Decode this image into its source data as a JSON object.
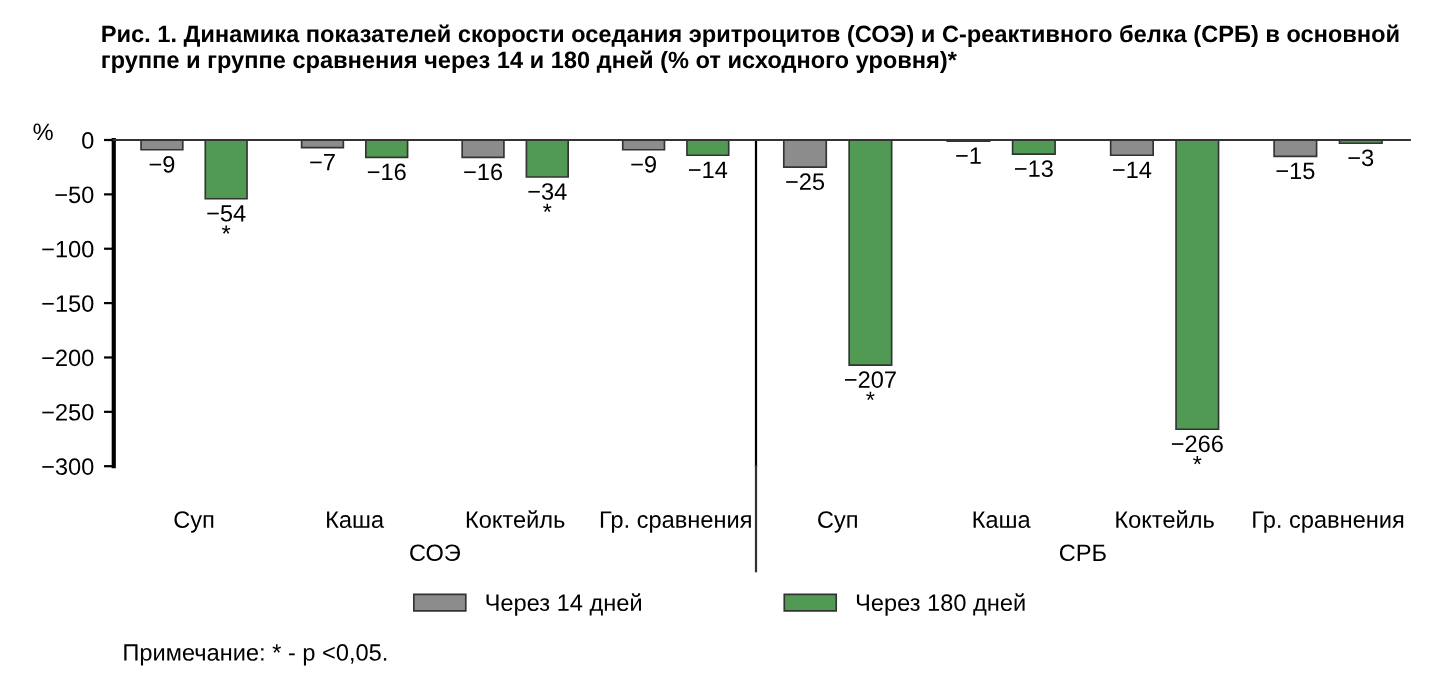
{
  "chart_data": [
    {
      "type": "bar",
      "title": "Рис. 1. Динамика показателей скорости оседания эритроцитов (СОЭ) и С-реактивного белка (СРБ) в основной группе и группе сравнения через 14 и 180 дней (% от исходного уровня)*",
      "xlabel": "СОЭ",
      "ylabel": "%",
      "categories": [
        "Суп",
        "Каша",
        "Коктейль",
        "Гр. сравнения"
      ],
      "series": [
        {
          "name": "Через 14 дней",
          "color": "#8c8c8c",
          "values": [
            -9,
            -7,
            -16,
            -9
          ],
          "value_labels": [
            "−9",
            "−7",
            "−16",
            "−9"
          ]
        },
        {
          "name": "Через 180 дней",
          "color": "#519a53",
          "values": [
            -54,
            -16,
            -34,
            -14
          ],
          "value_labels": [
            "−54\n*",
            "−16",
            "−34\n*",
            "−14"
          ]
        }
      ],
      "ylim": [
        -300,
        0
      ],
      "yticks": [
        {
          "value": 0,
          "label": "0"
        },
        {
          "value": -50,
          "label": "−50"
        },
        {
          "value": -100,
          "label": "−100"
        },
        {
          "value": -150,
          "label": "−150"
        },
        {
          "value": -200,
          "label": "−200"
        },
        {
          "value": -250,
          "label": "−250"
        },
        {
          "value": -300,
          "label": "−300"
        }
      ],
      "legend": "bottom",
      "grid": false,
      "annotations": [
        "Примечание: * - p <0,05."
      ]
    },
    {
      "type": "bar",
      "xlabel": "СРБ",
      "categories": [
        "Суп",
        "Каша",
        "Коктейль",
        "Гр. сравнения"
      ],
      "series": [
        {
          "color": "#8c8c8c",
          "values": [
            -25,
            -1,
            -14,
            -15
          ],
          "value_labels": [
            "−25",
            "−1",
            "−14",
            "−15"
          ]
        },
        {
          "color": "#519a53",
          "values": [
            -207,
            -13,
            -266,
            -3
          ],
          "value_labels": [
            "−207\n*",
            "−13",
            "−266\n*",
            "−3"
          ]
        }
      ],
      "ylim": [
        -300,
        0
      ],
      "tick_labels": "x",
      "grid": false
    }
  ]
}
